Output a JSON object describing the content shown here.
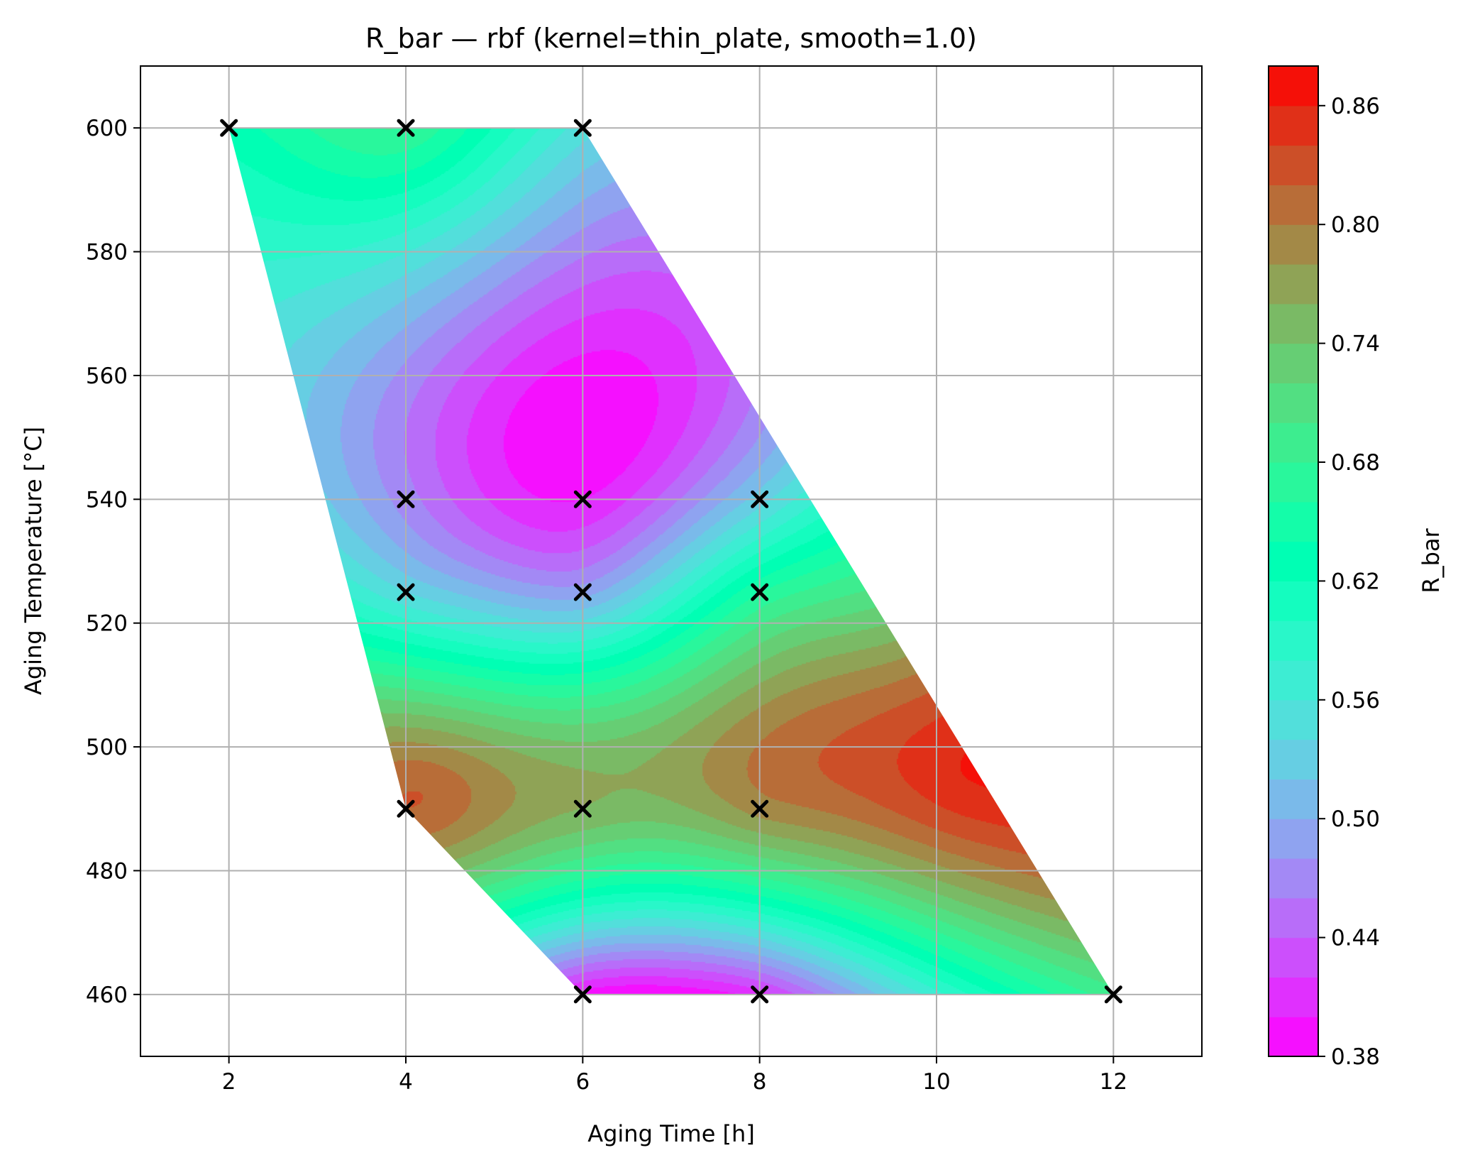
{
  "chart_data": {
    "type": "heatmap",
    "subtype": "filled-contour",
    "title": "R_bar — rbf (kernel=thin_plate, smooth=1.0)",
    "xlabel": "Aging Time [h]",
    "ylabel": "Aging Temperature [°C]",
    "xlim": [
      1,
      13
    ],
    "ylim": [
      450,
      610
    ],
    "xticks": [
      "2",
      "4",
      "6",
      "8",
      "10",
      "12"
    ],
    "yticks": [
      "460",
      "480",
      "500",
      "520",
      "540",
      "560",
      "580",
      "600"
    ],
    "grid": true,
    "colormap": "rainbow",
    "colorbar": {
      "label": "R_bar",
      "range": [
        0.38,
        0.88
      ],
      "levels": 25,
      "ticks": [
        "0.38",
        "0.44",
        "0.50",
        "0.56",
        "0.62",
        "0.68",
        "0.74",
        "0.80",
        "0.86"
      ]
    },
    "region": {
      "description": "convex hull of sample points",
      "vertices": [
        [
          2,
          600
        ],
        [
          6,
          600
        ],
        [
          12,
          460
        ],
        [
          6,
          460
        ],
        [
          4,
          490
        ]
      ]
    },
    "samples": [
      {
        "x": 2,
        "y": 600,
        "value": 0.63
      },
      {
        "x": 4,
        "y": 600,
        "value": 0.68
      },
      {
        "x": 6,
        "y": 600,
        "value": 0.55
      },
      {
        "x": 4,
        "y": 540,
        "value": 0.47
      },
      {
        "x": 6,
        "y": 540,
        "value": 0.4
      },
      {
        "x": 8,
        "y": 540,
        "value": 0.53
      },
      {
        "x": 4,
        "y": 525,
        "value": 0.54
      },
      {
        "x": 6,
        "y": 525,
        "value": 0.49
      },
      {
        "x": 8,
        "y": 525,
        "value": 0.66
      },
      {
        "x": 4,
        "y": 490,
        "value": 0.82
      },
      {
        "x": 6,
        "y": 490,
        "value": 0.76
      },
      {
        "x": 8,
        "y": 490,
        "value": 0.79
      },
      {
        "x": 6,
        "y": 460,
        "value": 0.39
      },
      {
        "x": 8,
        "y": 460,
        "value": 0.41
      },
      {
        "x": 12,
        "y": 460,
        "value": 0.69
      }
    ],
    "features": [
      {
        "x": 6.2,
        "y": 551,
        "value": 0.38
      },
      {
        "x": 10.3,
        "y": 495,
        "value": 0.86
      },
      {
        "x": 4.2,
        "y": 493,
        "value": 0.82
      },
      {
        "x": 9.5,
        "y": 520,
        "value": 0.74
      },
      {
        "x": 6.8,
        "y": 460,
        "value": 0.38
      }
    ]
  }
}
